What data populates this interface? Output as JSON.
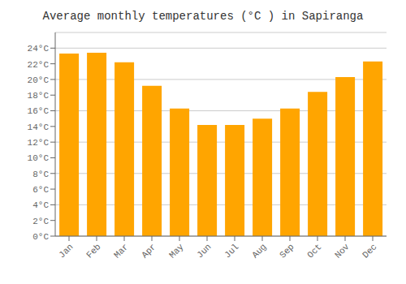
{
  "chart_data": {
    "type": "bar",
    "title": "Average monthly temperatures (°C ) in Sapiranga",
    "categories": [
      "Jan",
      "Feb",
      "Mar",
      "Apr",
      "May",
      "Jun",
      "Jul",
      "Aug",
      "Sep",
      "Oct",
      "Nov",
      "Dec"
    ],
    "values": [
      23.3,
      23.4,
      22.2,
      19.2,
      16.3,
      14.2,
      14.2,
      15.0,
      16.3,
      18.4,
      20.3,
      22.3
    ],
    "color": "#FFA500",
    "ylim": [
      0,
      26
    ],
    "yticks": [
      {
        "value": 0,
        "label": "0°C"
      },
      {
        "value": 2,
        "label": "2°C"
      },
      {
        "value": 4,
        "label": "4°C"
      },
      {
        "value": 6,
        "label": "6°C"
      },
      {
        "value": 8,
        "label": "8°C"
      },
      {
        "value": 10,
        "label": "10°C"
      },
      {
        "value": 12,
        "label": "12°C"
      },
      {
        "value": 14,
        "label": "14°C"
      },
      {
        "value": 16,
        "label": "16°C"
      },
      {
        "value": 18,
        "label": "18°C"
      },
      {
        "value": 20,
        "label": "20°C"
      },
      {
        "value": 22,
        "label": "22°C"
      },
      {
        "value": 24,
        "label": "24°C"
      }
    ],
    "grid": true
  }
}
